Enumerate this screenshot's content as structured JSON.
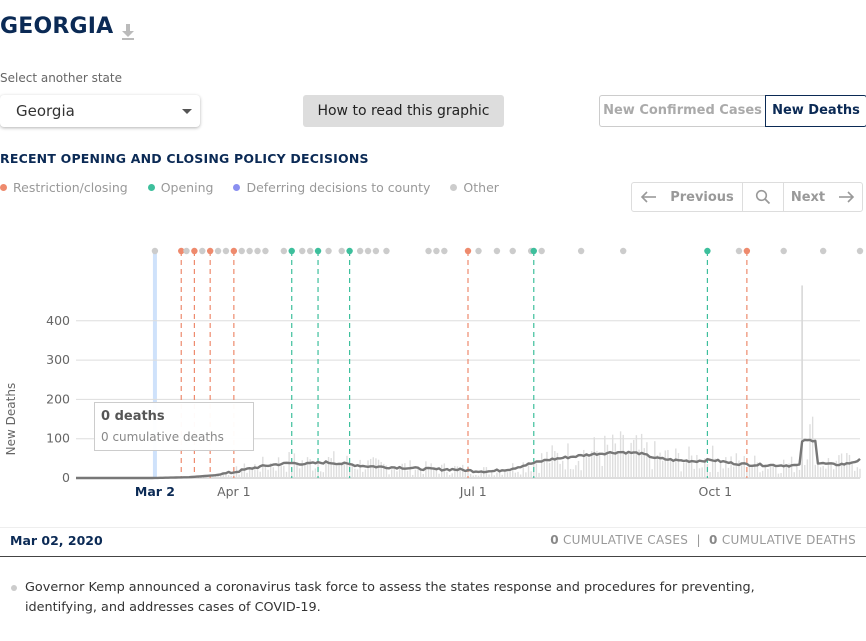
{
  "header": {
    "title": "GEORGIA",
    "download_icon": "download-icon"
  },
  "state_select": {
    "label": "Select another state",
    "value": "Georgia"
  },
  "how_button": {
    "label": "How to read this graphic"
  },
  "toggle": {
    "cases_label": "New Confirmed Cases",
    "deaths_label": "New Deaths",
    "active": "deaths"
  },
  "policy": {
    "heading": "RECENT OPENING AND CLOSING POLICY DECISIONS",
    "legend": [
      {
        "label": "Restriction/closing",
        "color": "#ee8a6d"
      },
      {
        "label": "Opening",
        "color": "#3dbf9c"
      },
      {
        "label": "Deferring decisions to county",
        "color": "#8a8ff0"
      },
      {
        "label": "Other",
        "color": "#cccccc"
      }
    ]
  },
  "nav": {
    "previous_label": "Previous",
    "next_label": "Next",
    "search_icon": "search-icon"
  },
  "chart_data": {
    "type": "bar",
    "ylabel": "New Deaths",
    "ylim": [
      0,
      450
    ],
    "yticks": [
      0,
      100,
      200,
      300,
      400
    ],
    "xlim": [
      "2020-02-01",
      "2020-11-25"
    ],
    "xticks": [
      {
        "date": "2020-03-02",
        "label": "Mar 2",
        "highlight": true
      },
      {
        "date": "2020-04-01",
        "label": "Apr 1"
      },
      {
        "date": "2020-07-01",
        "label": "Jul 1"
      },
      {
        "date": "2020-10-01",
        "label": "Oct 1"
      }
    ],
    "grid": true,
    "selected_date": "2020-03-02",
    "rolling_average": [
      [
        "2020-02-01",
        0
      ],
      [
        "2020-03-01",
        0
      ],
      [
        "2020-03-15",
        2
      ],
      [
        "2020-03-25",
        7
      ],
      [
        "2020-04-01",
        15
      ],
      [
        "2020-04-08",
        25
      ],
      [
        "2020-04-15",
        33
      ],
      [
        "2020-04-22",
        38
      ],
      [
        "2020-04-29",
        36
      ],
      [
        "2020-05-06",
        40
      ],
      [
        "2020-05-13",
        36
      ],
      [
        "2020-05-20",
        31
      ],
      [
        "2020-05-27",
        28
      ],
      [
        "2020-06-03",
        27
      ],
      [
        "2020-06-10",
        24
      ],
      [
        "2020-06-17",
        22
      ],
      [
        "2020-06-24",
        22
      ],
      [
        "2020-07-01",
        18
      ],
      [
        "2020-07-08",
        17
      ],
      [
        "2020-07-15",
        23
      ],
      [
        "2020-07-22",
        35
      ],
      [
        "2020-07-29",
        46
      ],
      [
        "2020-08-05",
        52
      ],
      [
        "2020-08-12",
        58
      ],
      [
        "2020-08-19",
        63
      ],
      [
        "2020-08-26",
        66
      ],
      [
        "2020-09-02",
        63
      ],
      [
        "2020-09-09",
        50
      ],
      [
        "2020-09-16",
        45
      ],
      [
        "2020-09-23",
        43
      ],
      [
        "2020-09-30",
        46
      ],
      [
        "2020-10-07",
        38
      ],
      [
        "2020-10-14",
        34
      ],
      [
        "2020-10-21",
        33
      ],
      [
        "2020-10-28",
        32
      ],
      [
        "2020-11-02",
        32
      ],
      [
        "2020-11-03",
        94
      ],
      [
        "2020-11-08",
        97
      ],
      [
        "2020-11-09",
        38
      ],
      [
        "2020-11-15",
        34
      ],
      [
        "2020-11-20",
        36
      ],
      [
        "2020-11-25",
        46
      ]
    ],
    "spike": {
      "date": "2020-11-03",
      "value": 490
    },
    "policy_events": [
      {
        "date": "2020-03-02",
        "type": "other",
        "line": false
      },
      {
        "date": "2020-03-12",
        "type": "restriction",
        "line": true
      },
      {
        "date": "2020-03-14",
        "type": "other",
        "line": false
      },
      {
        "date": "2020-03-17",
        "type": "restriction",
        "line": true
      },
      {
        "date": "2020-03-20",
        "type": "other",
        "line": false
      },
      {
        "date": "2020-03-23",
        "type": "restriction",
        "line": true
      },
      {
        "date": "2020-03-26",
        "type": "other",
        "line": false
      },
      {
        "date": "2020-03-29",
        "type": "other",
        "line": false
      },
      {
        "date": "2020-04-01",
        "type": "restriction",
        "line": true
      },
      {
        "date": "2020-04-04",
        "type": "other",
        "line": false
      },
      {
        "date": "2020-04-07",
        "type": "other",
        "line": false
      },
      {
        "date": "2020-04-10",
        "type": "other",
        "line": false
      },
      {
        "date": "2020-04-13",
        "type": "other",
        "line": false
      },
      {
        "date": "2020-04-20",
        "type": "other",
        "line": false
      },
      {
        "date": "2020-04-23",
        "type": "opening",
        "line": true
      },
      {
        "date": "2020-04-27",
        "type": "other",
        "line": false
      },
      {
        "date": "2020-04-30",
        "type": "other",
        "line": false
      },
      {
        "date": "2020-05-03",
        "type": "opening",
        "line": true
      },
      {
        "date": "2020-05-07",
        "type": "other",
        "line": false
      },
      {
        "date": "2020-05-12",
        "type": "other",
        "line": false
      },
      {
        "date": "2020-05-15",
        "type": "opening",
        "line": true
      },
      {
        "date": "2020-05-19",
        "type": "other",
        "line": false
      },
      {
        "date": "2020-05-22",
        "type": "other",
        "line": false
      },
      {
        "date": "2020-05-25",
        "type": "other",
        "line": false
      },
      {
        "date": "2020-05-29",
        "type": "other",
        "line": false
      },
      {
        "date": "2020-06-14",
        "type": "other",
        "line": false
      },
      {
        "date": "2020-06-17",
        "type": "other",
        "line": false
      },
      {
        "date": "2020-06-20",
        "type": "other",
        "line": false
      },
      {
        "date": "2020-06-29",
        "type": "restriction",
        "line": true
      },
      {
        "date": "2020-07-03",
        "type": "other",
        "line": false
      },
      {
        "date": "2020-07-10",
        "type": "other",
        "line": false
      },
      {
        "date": "2020-07-16",
        "type": "other",
        "line": false
      },
      {
        "date": "2020-07-23",
        "type": "other",
        "line": false
      },
      {
        "date": "2020-07-24",
        "type": "opening",
        "line": true
      },
      {
        "date": "2020-07-27",
        "type": "other",
        "line": false
      },
      {
        "date": "2020-08-11",
        "type": "other",
        "line": false
      },
      {
        "date": "2020-08-27",
        "type": "other",
        "line": false
      },
      {
        "date": "2020-09-28",
        "type": "opening",
        "line": true
      },
      {
        "date": "2020-10-10",
        "type": "other",
        "line": false
      },
      {
        "date": "2020-10-13",
        "type": "restriction",
        "line": true
      },
      {
        "date": "2020-10-27",
        "type": "other",
        "line": false
      },
      {
        "date": "2020-11-11",
        "type": "other",
        "line": false
      },
      {
        "date": "2020-11-25",
        "type": "other",
        "line": false
      }
    ]
  },
  "tooltip": {
    "title": "0 deaths",
    "subtitle": "0 cumulative deaths"
  },
  "date_bar": {
    "date": "Mar 02, 2020",
    "cumulative_cases_value": "0",
    "cumulative_cases_label": "CUMULATIVE CASES",
    "separator": "|",
    "cumulative_deaths_value": "0",
    "cumulative_deaths_label": "CUMULATIVE DEATHS"
  },
  "event": {
    "text": "Governor Kemp announced a coronavirus task force to assess the states response and procedures for preventing, identifying, and addresses cases of COVID-19."
  }
}
